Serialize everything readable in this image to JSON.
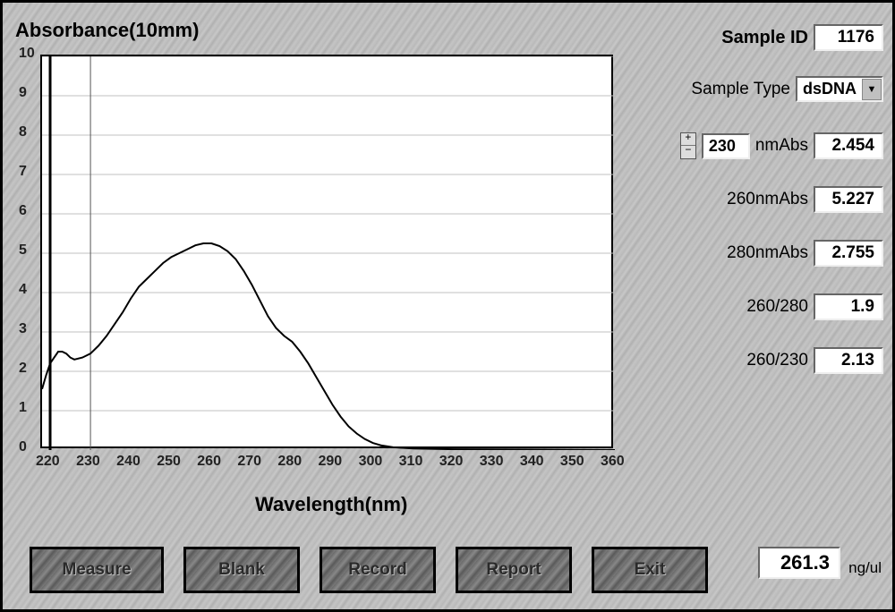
{
  "chart": {
    "title": "Absorbance(10mm)",
    "x_axis_title": "Wavelength(nm)",
    "type": "line",
    "background_color": "#ffffff",
    "grid_color": "#c0c0c0",
    "line_color": "#000000",
    "line_width": 2,
    "cursor_line_x": 230,
    "cursor_line_color": "#555555",
    "xlim": [
      218,
      360
    ],
    "ylim": [
      0,
      10
    ],
    "x_ticks": [
      220,
      230,
      240,
      250,
      260,
      270,
      280,
      290,
      300,
      310,
      320,
      330,
      340,
      350,
      360
    ],
    "y_ticks": [
      0,
      1,
      2,
      3,
      4,
      5,
      6,
      7,
      8,
      9,
      10
    ],
    "series": [
      {
        "x": 218,
        "y": 1.55
      },
      {
        "x": 219,
        "y": 1.9
      },
      {
        "x": 220,
        "y": 2.2
      },
      {
        "x": 221,
        "y": 2.35
      },
      {
        "x": 222,
        "y": 2.5
      },
      {
        "x": 223,
        "y": 2.5
      },
      {
        "x": 224,
        "y": 2.45
      },
      {
        "x": 225,
        "y": 2.35
      },
      {
        "x": 226,
        "y": 2.3
      },
      {
        "x": 228,
        "y": 2.35
      },
      {
        "x": 230,
        "y": 2.45
      },
      {
        "x": 232,
        "y": 2.65
      },
      {
        "x": 234,
        "y": 2.9
      },
      {
        "x": 236,
        "y": 3.2
      },
      {
        "x": 238,
        "y": 3.5
      },
      {
        "x": 240,
        "y": 3.85
      },
      {
        "x": 242,
        "y": 4.15
      },
      {
        "x": 244,
        "y": 4.35
      },
      {
        "x": 246,
        "y": 4.55
      },
      {
        "x": 248,
        "y": 4.75
      },
      {
        "x": 250,
        "y": 4.9
      },
      {
        "x": 252,
        "y": 5.0
      },
      {
        "x": 254,
        "y": 5.1
      },
      {
        "x": 256,
        "y": 5.2
      },
      {
        "x": 258,
        "y": 5.25
      },
      {
        "x": 260,
        "y": 5.25
      },
      {
        "x": 262,
        "y": 5.18
      },
      {
        "x": 264,
        "y": 5.05
      },
      {
        "x": 266,
        "y": 4.85
      },
      {
        "x": 268,
        "y": 4.55
      },
      {
        "x": 270,
        "y": 4.2
      },
      {
        "x": 272,
        "y": 3.8
      },
      {
        "x": 274,
        "y": 3.4
      },
      {
        "x": 276,
        "y": 3.1
      },
      {
        "x": 278,
        "y": 2.9
      },
      {
        "x": 280,
        "y": 2.75
      },
      {
        "x": 282,
        "y": 2.5
      },
      {
        "x": 284,
        "y": 2.2
      },
      {
        "x": 286,
        "y": 1.85
      },
      {
        "x": 288,
        "y": 1.5
      },
      {
        "x": 290,
        "y": 1.15
      },
      {
        "x": 292,
        "y": 0.85
      },
      {
        "x": 294,
        "y": 0.6
      },
      {
        "x": 296,
        "y": 0.42
      },
      {
        "x": 298,
        "y": 0.28
      },
      {
        "x": 300,
        "y": 0.18
      },
      {
        "x": 302,
        "y": 0.12
      },
      {
        "x": 305,
        "y": 0.07
      },
      {
        "x": 310,
        "y": 0.04
      },
      {
        "x": 320,
        "y": 0.02
      },
      {
        "x": 340,
        "y": 0.01
      },
      {
        "x": 360,
        "y": 0.0
      }
    ]
  },
  "side": {
    "sample_id_label": "Sample ID",
    "sample_id_value": "1176",
    "sample_type_label": "Sample Type",
    "sample_type_value": "dsDNA",
    "nm_input_value": "230",
    "nm_abs_label": "nmAbs",
    "nm_abs_value": "2.454",
    "abs260_label": "260nmAbs",
    "abs260_value": "5.227",
    "abs280_label": "280nmAbs",
    "abs280_value": "2.755",
    "ratio260_280_label": "260/280",
    "ratio260_280_value": "1.9",
    "ratio260_230_label": "260/230",
    "ratio260_230_value": "2.13"
  },
  "concentration": {
    "value": "261.3",
    "unit": "ng/ul"
  },
  "buttons": {
    "measure": "Measure",
    "blank": "Blank",
    "record": "Record",
    "report": "Report",
    "exit": "Exit"
  }
}
